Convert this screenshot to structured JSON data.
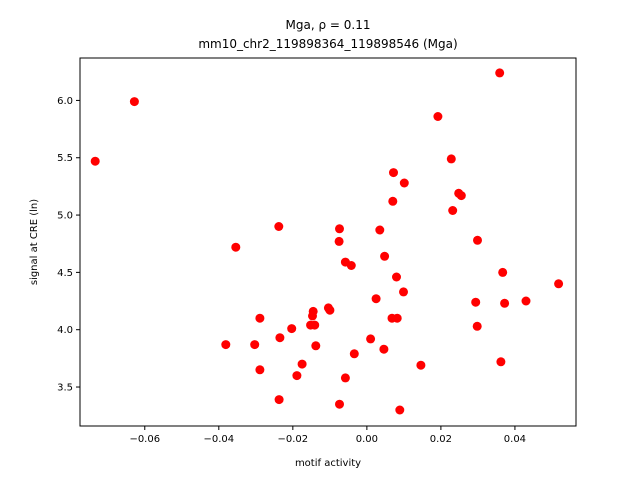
{
  "chart_data": {
    "type": "scatter",
    "title_line1": "Mga, ρ = 0.11",
    "title_line2": "mm10_chr2_119898364_119898546 (Mga)",
    "xlabel": "motif activity",
    "ylabel": "signal at CRE (ln)",
    "xlim": [
      -0.0775,
      0.0565
    ],
    "ylim": [
      3.16,
      6.37
    ],
    "xticks": [
      -0.06,
      -0.04,
      -0.02,
      0.0,
      0.02,
      0.04
    ],
    "xtick_labels": [
      "−0.06",
      "−0.04",
      "−0.02",
      "0.00",
      "0.02",
      "0.04"
    ],
    "yticks": [
      3.5,
      4.0,
      4.5,
      5.0,
      5.5,
      6.0
    ],
    "ytick_labels": [
      "3.5",
      "4.0",
      "4.5",
      "5.0",
      "5.5",
      "6.0"
    ],
    "marker_color": "#ff0000",
    "grid": false,
    "points": [
      {
        "x": -0.0734,
        "y": 5.47
      },
      {
        "x": -0.0628,
        "y": 5.99
      },
      {
        "x": -0.0381,
        "y": 3.87
      },
      {
        "x": -0.0354,
        "y": 4.72
      },
      {
        "x": -0.0303,
        "y": 3.87
      },
      {
        "x": -0.0289,
        "y": 4.1
      },
      {
        "x": -0.0289,
        "y": 3.65
      },
      {
        "x": -0.0238,
        "y": 4.9
      },
      {
        "x": -0.0235,
        "y": 3.93
      },
      {
        "x": -0.0237,
        "y": 3.39
      },
      {
        "x": -0.0203,
        "y": 4.01
      },
      {
        "x": -0.0189,
        "y": 3.6
      },
      {
        "x": -0.0175,
        "y": 3.7
      },
      {
        "x": -0.0152,
        "y": 4.04
      },
      {
        "x": -0.0147,
        "y": 4.12
      },
      {
        "x": -0.0145,
        "y": 4.16
      },
      {
        "x": -0.0141,
        "y": 4.04
      },
      {
        "x": -0.0138,
        "y": 3.86
      },
      {
        "x": -0.0104,
        "y": 4.19
      },
      {
        "x": -0.01,
        "y": 4.17
      },
      {
        "x": -0.0075,
        "y": 4.77
      },
      {
        "x": -0.0074,
        "y": 4.88
      },
      {
        "x": -0.0074,
        "y": 3.35
      },
      {
        "x": -0.0058,
        "y": 4.59
      },
      {
        "x": -0.0058,
        "y": 3.58
      },
      {
        "x": -0.0042,
        "y": 4.56
      },
      {
        "x": -0.0034,
        "y": 3.79
      },
      {
        "x": 0.001,
        "y": 3.92
      },
      {
        "x": 0.0025,
        "y": 4.27
      },
      {
        "x": 0.0035,
        "y": 4.87
      },
      {
        "x": 0.0046,
        "y": 3.83
      },
      {
        "x": 0.0048,
        "y": 4.64
      },
      {
        "x": 0.0068,
        "y": 4.1
      },
      {
        "x": 0.007,
        "y": 5.12
      },
      {
        "x": 0.0072,
        "y": 5.37
      },
      {
        "x": 0.008,
        "y": 4.46
      },
      {
        "x": 0.0082,
        "y": 4.1
      },
      {
        "x": 0.0089,
        "y": 3.3
      },
      {
        "x": 0.0099,
        "y": 4.33
      },
      {
        "x": 0.0101,
        "y": 5.28
      },
      {
        "x": 0.0146,
        "y": 3.69
      },
      {
        "x": 0.0192,
        "y": 5.86
      },
      {
        "x": 0.0228,
        "y": 5.49
      },
      {
        "x": 0.0232,
        "y": 5.04
      },
      {
        "x": 0.0248,
        "y": 5.19
      },
      {
        "x": 0.0255,
        "y": 5.17
      },
      {
        "x": 0.0294,
        "y": 4.24
      },
      {
        "x": 0.0298,
        "y": 4.03
      },
      {
        "x": 0.0299,
        "y": 4.78
      },
      {
        "x": 0.0359,
        "y": 6.24
      },
      {
        "x": 0.0362,
        "y": 3.72
      },
      {
        "x": 0.0367,
        "y": 4.5
      },
      {
        "x": 0.0372,
        "y": 4.23
      },
      {
        "x": 0.043,
        "y": 4.25
      },
      {
        "x": 0.0518,
        "y": 4.4
      }
    ]
  }
}
